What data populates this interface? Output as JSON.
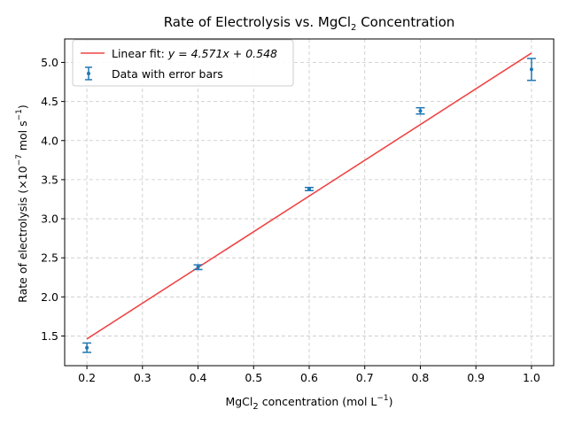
{
  "chart_data": {
    "type": "scatter",
    "title_main": "Rate of Electrolysis vs. MgCl",
    "title_sub": "2",
    "title_tail": " Concentration",
    "xlabel_main": "MgCl",
    "xlabel_sub": "2",
    "xlabel_tail": " concentration (mol L",
    "xlabel_sup": "−1",
    "xlabel_close": ")",
    "ylabel_main": "Rate of electrolysis (×10",
    "ylabel_sup1": "−7",
    "ylabel_mid": " mol s",
    "ylabel_sup2": "−1",
    "ylabel_close": ")",
    "xlim": [
      0.16,
      1.04
    ],
    "ylim": [
      1.12,
      5.3
    ],
    "xticks": [
      0.2,
      0.3,
      0.4,
      0.5,
      0.6,
      0.7,
      0.8,
      0.9,
      1.0
    ],
    "xtick_labels": [
      "0.2",
      "0.3",
      "0.4",
      "0.5",
      "0.6",
      "0.7",
      "0.8",
      "0.9",
      "1.0"
    ],
    "yticks": [
      1.5,
      2.0,
      2.5,
      3.0,
      3.5,
      4.0,
      4.5,
      5.0
    ],
    "ytick_labels": [
      "1.5",
      "2.0",
      "2.5",
      "3.0",
      "3.5",
      "4.0",
      "4.5",
      "5.0"
    ],
    "grid": true,
    "legend_placement": "upper-left",
    "series": [
      {
        "name": "Data with error bars",
        "kind": "errorbar",
        "color": "#1f77b4",
        "x": [
          0.2,
          0.4,
          0.6,
          0.8,
          1.0
        ],
        "y": [
          1.35,
          2.38,
          3.38,
          4.38,
          4.91
        ],
        "yerr": [
          0.06,
          0.03,
          0.02,
          0.04,
          0.14
        ]
      },
      {
        "name": "Linear fit",
        "kind": "line",
        "color": "#ef4545",
        "legend_text": "Linear fit: ",
        "legend_formula": "y = 4.571x + 0.548",
        "slope": 4.571,
        "intercept": 0.548,
        "x_range": [
          0.2,
          1.0
        ]
      }
    ]
  }
}
